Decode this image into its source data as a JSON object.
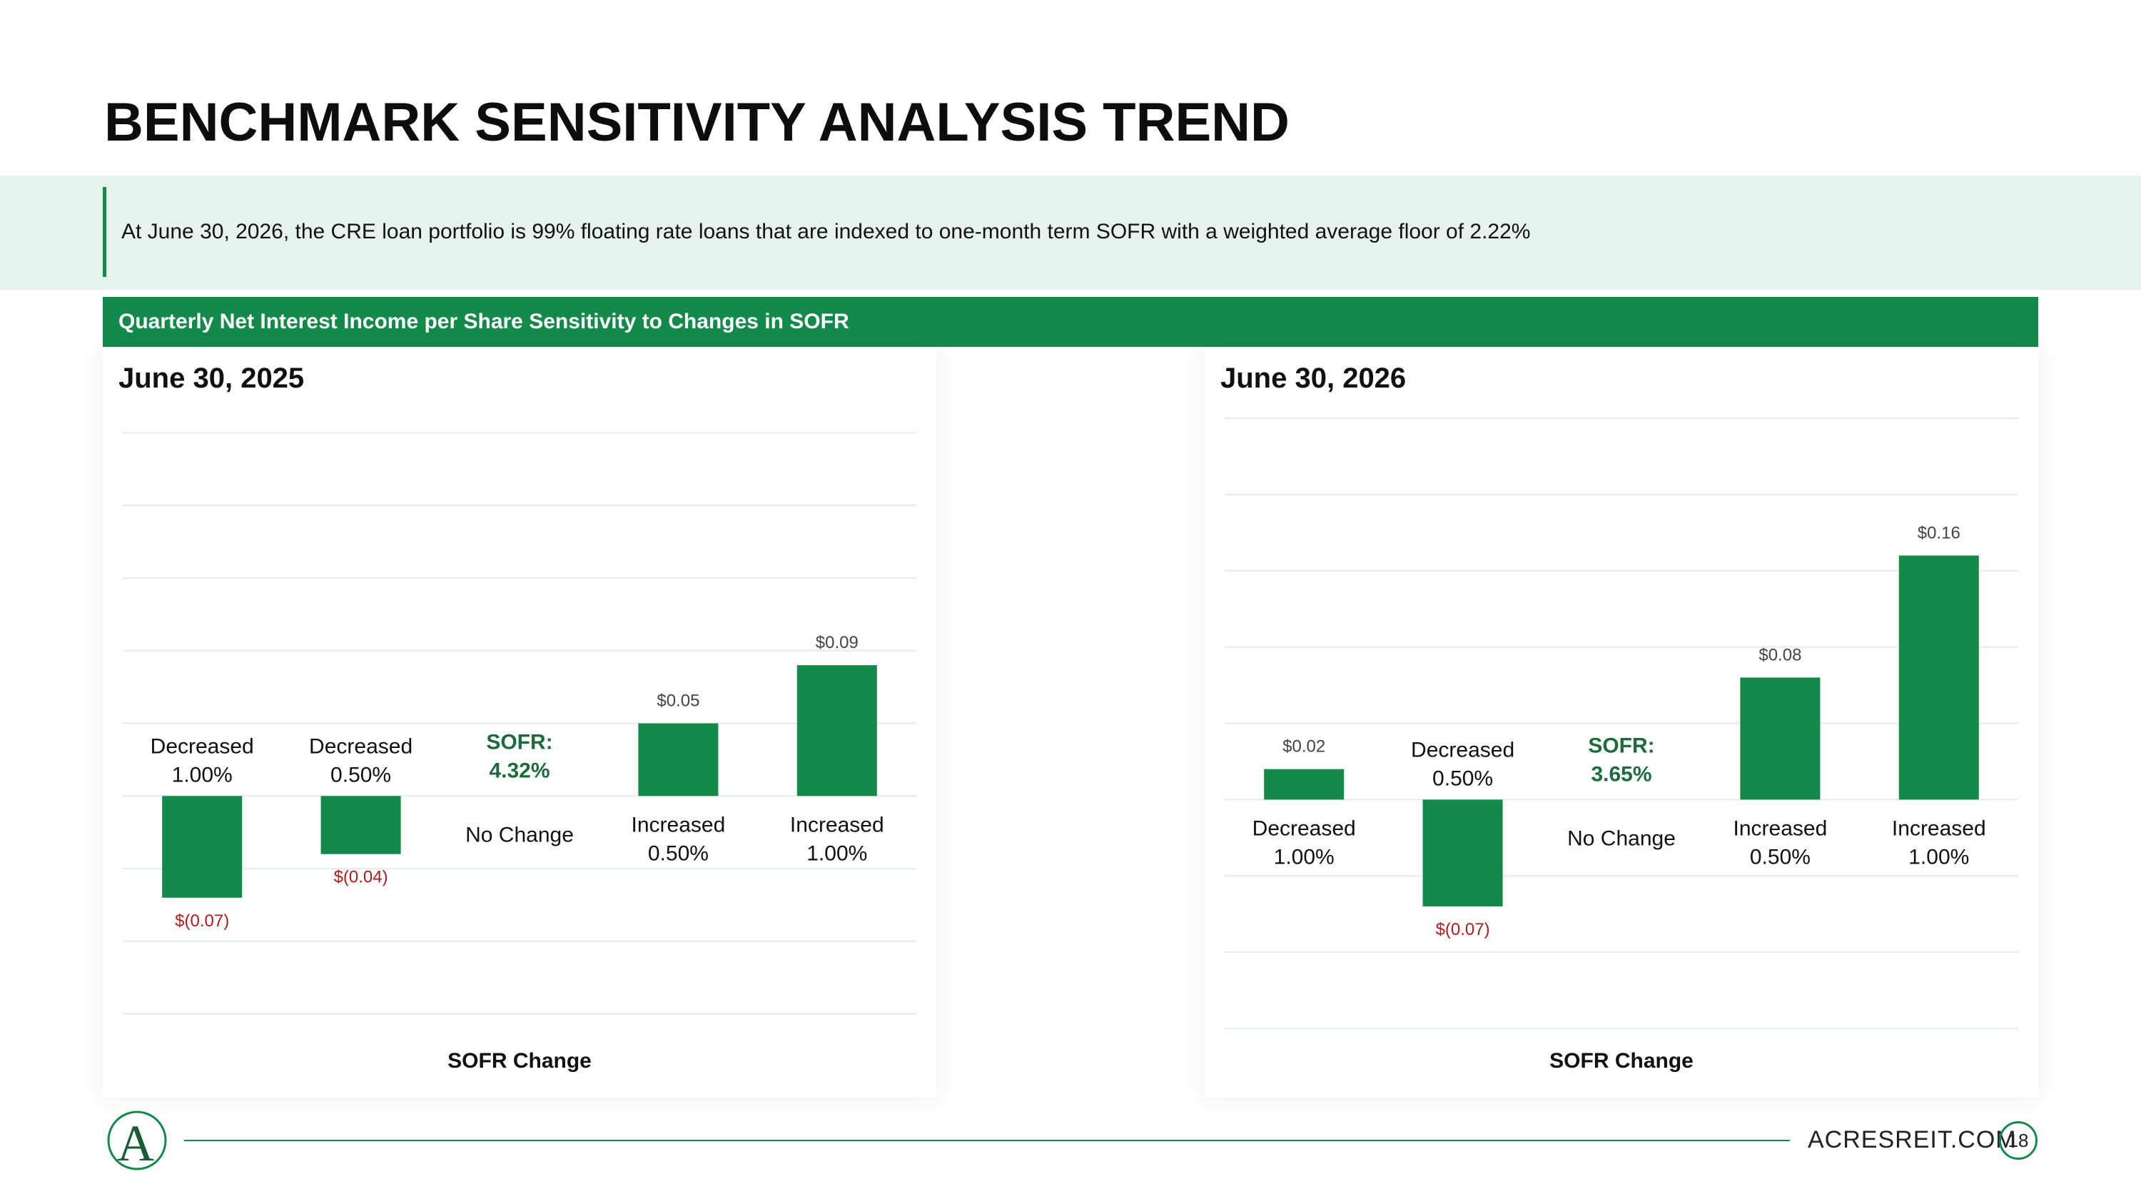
{
  "page": {
    "title": "BENCHMARK SENSITIVITY ANALYSIS TREND",
    "callout": "At June 30, 2026, the CRE loan portfolio is 99% floating rate loans that are indexed to one-month term SOFR with a weighted average floor of 2.22%",
    "banner": "Quarterly Net Interest Income per Share Sensitivity to Changes in SOFR",
    "footer": {
      "site": "ACRESREIT.COM",
      "page_number": "18",
      "logo_letter": "A"
    }
  },
  "colors": {
    "accent": "#138a4a",
    "negative_label": "#b01c1c",
    "grid": "#e3eee8",
    "callout_bg": "#e6f3ec"
  },
  "chart_data": [
    {
      "type": "bar",
      "title": "June 30, 2025",
      "xlabel": "SOFR Change",
      "ylabel": "",
      "ylim": [
        -0.16,
        0.26
      ],
      "grid": true,
      "categories": [
        [
          "Decreased",
          "1.00%"
        ],
        [
          "Decreased",
          "0.50%"
        ],
        [
          "No Change"
        ],
        [
          "Increased",
          "0.50%"
        ],
        [
          "Increased",
          "1.00%"
        ]
      ],
      "baseline_note": [
        "SOFR:",
        "4.32%"
      ],
      "values": [
        -0.07,
        -0.04,
        0,
        0.05,
        0.09
      ],
      "value_labels": [
        "$(0.07)",
        "$(0.04)",
        "",
        "$0.05",
        "$0.09"
      ]
    },
    {
      "type": "bar",
      "title": "June 30, 2026",
      "xlabel": "SOFR Change",
      "ylabel": "",
      "ylim": [
        -0.15,
        0.25
      ],
      "grid": true,
      "categories": [
        [
          "Decreased",
          "1.00%"
        ],
        [
          "Decreased",
          "0.50%"
        ],
        [
          "No Change"
        ],
        [
          "Increased",
          "0.50%"
        ],
        [
          "Increased",
          "1.00%"
        ]
      ],
      "baseline_note": [
        "SOFR:",
        "3.65%"
      ],
      "values": [
        0.02,
        -0.07,
        0,
        0.08,
        0.16
      ],
      "value_labels": [
        "$0.02",
        "$(0.07)",
        "",
        "$0.08",
        "$0.16"
      ]
    }
  ]
}
